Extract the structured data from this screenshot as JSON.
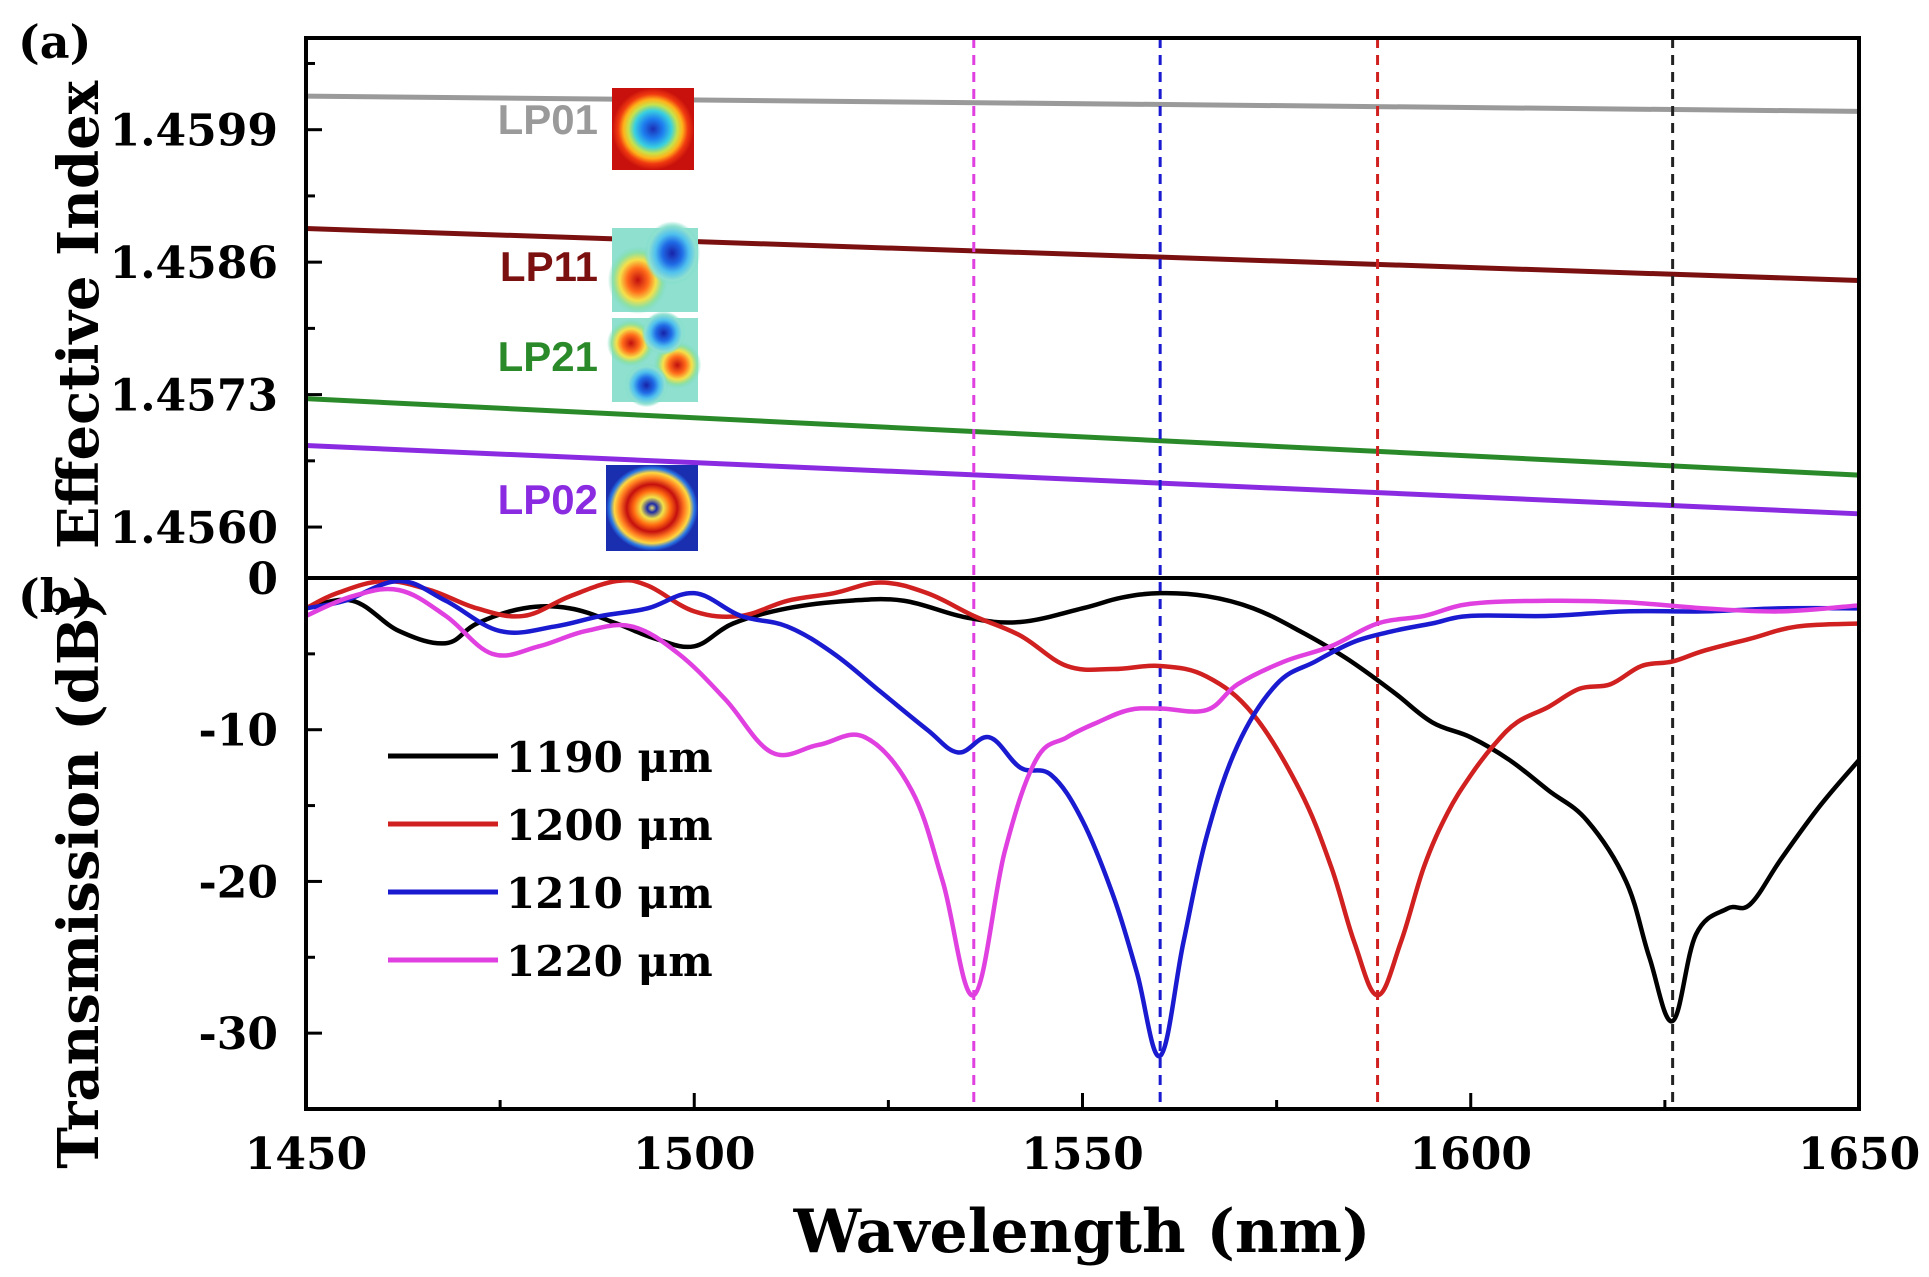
{
  "chart_data": [
    {
      "panel": "(a)",
      "type": "line",
      "ylabel": "Effective Index",
      "xlabel": "Wavelength (nm)",
      "xlim": [
        1450,
        1650
      ],
      "ylim": [
        1.4555,
        1.4608
      ],
      "y_ticks": [
        "1.4599",
        "1.4586",
        "1.4573",
        "1.4560"
      ],
      "y_tick_values": [
        1.4599,
        1.4586,
        1.4573,
        1.456
      ],
      "series": [
        {
          "name": "LP01",
          "color": "#9a9a9a",
          "x": [
            1450,
            1650
          ],
          "y": [
            1.46023,
            1.46008
          ]
        },
        {
          "name": "LP11",
          "color": "#7b1010",
          "x": [
            1450,
            1650
          ],
          "y": [
            1.45893,
            1.45842
          ]
        },
        {
          "name": "LP21",
          "color": "#2a8a2a",
          "x": [
            1450,
            1650
          ],
          "y": [
            1.45726,
            1.45651
          ]
        },
        {
          "name": "LP02",
          "color": "#8a2be2",
          "x": [
            1450,
            1650
          ],
          "y": [
            1.4568,
            1.45613
          ]
        }
      ],
      "mode_labels": [
        {
          "text": "LP01",
          "color": "#9a9a9a"
        },
        {
          "text": "LP11",
          "color": "#7b1010"
        },
        {
          "text": "LP21",
          "color": "#2a8a2a"
        },
        {
          "text": "LP02",
          "color": "#8a2be2"
        }
      ]
    },
    {
      "panel": "(b)",
      "type": "line",
      "ylabel": "Transmission (dB)",
      "xlabel": "Wavelength (nm)",
      "xlim": [
        1450,
        1650
      ],
      "ylim": [
        -35,
        0
      ],
      "x_ticks": [
        "1450",
        "1500",
        "1550",
        "1600",
        "1650"
      ],
      "x_tick_values": [
        1450,
        1500,
        1550,
        1600,
        1650
      ],
      "y_ticks": [
        "0",
        "-10",
        "-20",
        "-30"
      ],
      "y_tick_values": [
        0,
        -10,
        -20,
        -30
      ],
      "vlines": [
        {
          "x": 1536,
          "color": "#e040e0"
        },
        {
          "x": 1560,
          "color": "#1a1ad0"
        },
        {
          "x": 1588,
          "color": "#d02020"
        },
        {
          "x": 1626,
          "color": "#222222"
        }
      ],
      "series": [
        {
          "name": "1190 μm",
          "color": "#000000",
          "x": [
            1450,
            1456,
            1462,
            1468,
            1472,
            1478,
            1484,
            1490,
            1495,
            1500,
            1505,
            1512,
            1520,
            1527,
            1535,
            1542,
            1550,
            1555,
            1560,
            1566,
            1572,
            1578,
            1584,
            1590,
            1595,
            1600,
            1605,
            1610,
            1615,
            1620,
            1623,
            1626,
            1629,
            1633,
            1636,
            1640,
            1645,
            1650
          ],
          "y": [
            -2,
            -1.5,
            -3.5,
            -4.3,
            -3,
            -2,
            -2,
            -3,
            -4,
            -4.5,
            -3,
            -2,
            -1.5,
            -1.5,
            -2.6,
            -2.9,
            -2,
            -1.3,
            -1,
            -1.2,
            -2,
            -3.5,
            -5.3,
            -7.5,
            -9.5,
            -10.5,
            -12,
            -14,
            -16,
            -20,
            -25,
            -29.2,
            -23.5,
            -21.8,
            -21.5,
            -18.5,
            -15,
            -12
          ]
        },
        {
          "name": "1200 μm",
          "color": "#d02020",
          "x": [
            1450,
            1454,
            1460,
            1466,
            1472,
            1478,
            1484,
            1490,
            1494,
            1500,
            1506,
            1512,
            1518,
            1524,
            1530,
            1536,
            1542,
            1548,
            1554,
            1560,
            1566,
            1572,
            1578,
            1582,
            1585,
            1588,
            1591,
            1594,
            1597,
            1600,
            1603,
            1606,
            1610,
            1614,
            1618,
            1622,
            1626,
            1630,
            1636,
            1642,
            1650
          ],
          "y": [
            -2,
            -1,
            -0.2,
            -0.8,
            -2,
            -2.5,
            -1.2,
            -0.2,
            -0.5,
            -2.2,
            -2.5,
            -1.5,
            -1,
            -0.3,
            -1,
            -2.5,
            -3.8,
            -5.8,
            -6,
            -5.8,
            -6.5,
            -9,
            -14,
            -19,
            -24,
            -27.5,
            -24,
            -19,
            -15.5,
            -13,
            -11,
            -9.5,
            -8.5,
            -7.3,
            -7,
            -5.8,
            -5.5,
            -4.8,
            -4,
            -3.2,
            -3
          ]
        },
        {
          "name": "1210 μm",
          "color": "#1a1ad0",
          "x": [
            1450,
            1455,
            1462,
            1468,
            1475,
            1482,
            1488,
            1494,
            1500,
            1506,
            1512,
            1518,
            1524,
            1530,
            1534,
            1538,
            1542,
            1546,
            1550,
            1554,
            1557,
            1560,
            1563,
            1566,
            1570,
            1575,
            1580,
            1585,
            1590,
            1595,
            1600,
            1610,
            1620,
            1630,
            1640,
            1650
          ],
          "y": [
            -2,
            -1.5,
            -0.2,
            -1.5,
            -3.5,
            -3.2,
            -2.5,
            -2,
            -1,
            -2.5,
            -3.2,
            -5,
            -7.5,
            -10,
            -11.5,
            -10.5,
            -12.5,
            -13,
            -16,
            -21,
            -26,
            -31.5,
            -24,
            -17,
            -11,
            -7,
            -5.5,
            -4.2,
            -3.5,
            -3,
            -2.5,
            -2.5,
            -2.2,
            -2.2,
            -2,
            -2
          ]
        },
        {
          "name": "1220 μm",
          "color": "#e040e0",
          "x": [
            1450,
            1456,
            1462,
            1468,
            1474,
            1480,
            1486,
            1492,
            1498,
            1504,
            1510,
            1516,
            1522,
            1528,
            1532,
            1536,
            1540,
            1544,
            1548,
            1552,
            1556,
            1560,
            1566,
            1570,
            1576,
            1582,
            1588,
            1594,
            1600,
            1610,
            1620,
            1630,
            1640,
            1650
          ],
          "y": [
            -2.5,
            -1.2,
            -0.8,
            -2.5,
            -5,
            -4.5,
            -3.5,
            -3.2,
            -5,
            -8,
            -11.5,
            -11,
            -10.5,
            -14,
            -20,
            -27.5,
            -18,
            -12,
            -10.5,
            -9.5,
            -8.7,
            -8.6,
            -8.7,
            -7,
            -5.5,
            -4.5,
            -3,
            -2.5,
            -1.7,
            -1.5,
            -1.6,
            -2,
            -2.2,
            -1.8
          ]
        }
      ]
    }
  ],
  "labels": {
    "panel_a": "(a)",
    "panel_b": "(b)",
    "ylabel_a": "Effective Index",
    "ylabel_b": "Transmission (dB)",
    "xlabel": "Wavelength (nm)"
  }
}
